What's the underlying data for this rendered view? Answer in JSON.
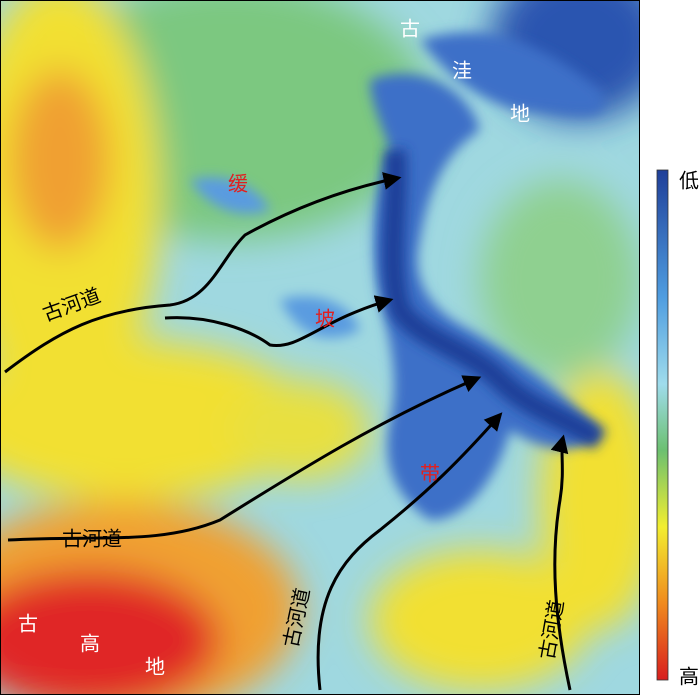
{
  "map": {
    "depression_label": [
      "古",
      "洼",
      "地"
    ],
    "slope_belt_label": [
      "缓",
      "坡",
      "带"
    ],
    "highland_label": [
      "古",
      "高",
      "地"
    ],
    "channel_labels": [
      "古河道",
      "古河道",
      "古河道",
      "古河道"
    ],
    "legend": {
      "low": "低",
      "high": "高"
    }
  }
}
